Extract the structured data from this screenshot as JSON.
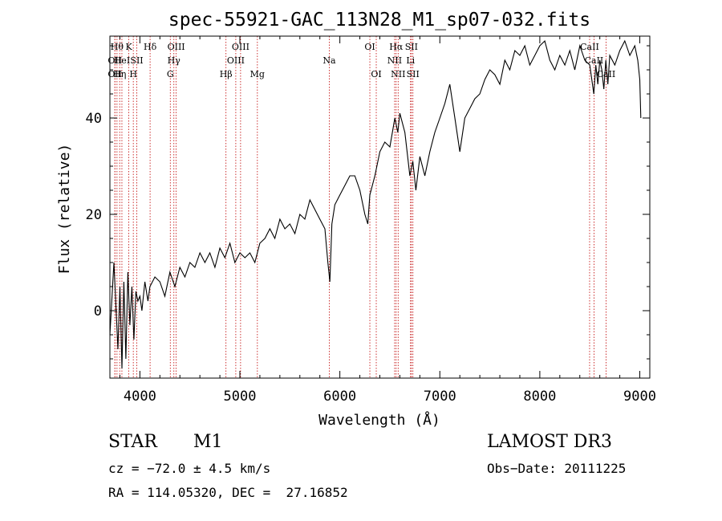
{
  "chart_data": {
    "type": "line",
    "title": "spec-55921-GAC_113N28_M1_sp07-032.fits",
    "xlabel": "Wavelength (Å)",
    "ylabel": "Flux (relative)",
    "xlim": [
      3700,
      9100
    ],
    "ylim": [
      -14,
      57
    ],
    "x_ticks": [
      4000,
      5000,
      6000,
      7000,
      8000,
      9000
    ],
    "y_ticks": [
      0,
      20,
      40
    ],
    "series": [
      {
        "name": "flux",
        "x": [
          3700,
          3740,
          3780,
          3800,
          3820,
          3840,
          3860,
          3880,
          3900,
          3920,
          3940,
          3960,
          3980,
          4000,
          4020,
          4050,
          4080,
          4100,
          4150,
          4200,
          4250,
          4300,
          4350,
          4400,
          4450,
          4500,
          4550,
          4600,
          4650,
          4700,
          4750,
          4800,
          4850,
          4900,
          4950,
          5000,
          5050,
          5100,
          5150,
          5200,
          5250,
          5300,
          5350,
          5400,
          5450,
          5500,
          5550,
          5600,
          5650,
          5700,
          5750,
          5800,
          5850,
          5880,
          5900,
          5920,
          5950,
          6000,
          6050,
          6100,
          6150,
          6200,
          6250,
          6280,
          6300,
          6350,
          6400,
          6450,
          6500,
          6550,
          6580,
          6600,
          6650,
          6700,
          6730,
          6760,
          6800,
          6850,
          6900,
          6950,
          7000,
          7050,
          7100,
          7150,
          7200,
          7250,
          7300,
          7350,
          7400,
          7450,
          7500,
          7550,
          7600,
          7650,
          7700,
          7750,
          7800,
          7850,
          7900,
          7950,
          8000,
          8050,
          8100,
          8150,
          8200,
          8250,
          8300,
          8350,
          8400,
          8450,
          8500,
          8520,
          8540,
          8560,
          8580,
          8600,
          8620,
          8640,
          8660,
          8680,
          8700,
          8750,
          8800,
          8850,
          8900,
          8950,
          8980,
          9000,
          9010
        ],
        "y": [
          -5,
          10,
          -8,
          5,
          -12,
          6,
          -10,
          8,
          -3,
          5,
          -6,
          4,
          2,
          3,
          0,
          6,
          2,
          5,
          7,
          6,
          3,
          8,
          5,
          9,
          7,
          10,
          9,
          12,
          10,
          12,
          9,
          13,
          11,
          14,
          10,
          12,
          11,
          12,
          10,
          14,
          15,
          17,
          15,
          19,
          17,
          18,
          16,
          20,
          19,
          23,
          21,
          19,
          17,
          10,
          6,
          18,
          22,
          24,
          26,
          28,
          28,
          25,
          20,
          18,
          24,
          28,
          33,
          35,
          34,
          40,
          37,
          41,
          37,
          28,
          31,
          25,
          32,
          28,
          33,
          37,
          40,
          43,
          47,
          40,
          33,
          40,
          42,
          44,
          45,
          48,
          50,
          49,
          47,
          52,
          50,
          54,
          53,
          55,
          51,
          53,
          55,
          56,
          52,
          50,
          53,
          51,
          54,
          50,
          55,
          52,
          51,
          48,
          45,
          51,
          47,
          52,
          50,
          46,
          52,
          47,
          53,
          51,
          54,
          56,
          53,
          55,
          52,
          48,
          40
        ]
      }
    ],
    "lines": [
      {
        "x": 3750,
        "label": "OII",
        "row": 1
      },
      {
        "x": 3750,
        "label": "OII",
        "row": 2
      },
      {
        "x": 3771,
        "label": "Hθ",
        "row": 0
      },
      {
        "x": 3798,
        "label": "Hη",
        "row": 2
      },
      {
        "x": 3820,
        "label": "HeI",
        "row": 1
      },
      {
        "x": 3889,
        "label": "K",
        "row": 0
      },
      {
        "x": 3934,
        "label": "H",
        "row": 2
      },
      {
        "x": 3969,
        "label": "SII",
        "row": 1
      },
      {
        "x": 4102,
        "label": "Hδ",
        "row": 0
      },
      {
        "x": 4304,
        "label": "G",
        "row": 2
      },
      {
        "x": 4340,
        "label": "Hγ",
        "row": 1
      },
      {
        "x": 4363,
        "label": "OIII",
        "row": 0
      },
      {
        "x": 4861,
        "label": "Hβ",
        "row": 2
      },
      {
        "x": 4959,
        "label": "OIII",
        "row": 1
      },
      {
        "x": 5007,
        "label": "OIII",
        "row": 0
      },
      {
        "x": 5175,
        "label": "Mg",
        "row": 2
      },
      {
        "x": 5894,
        "label": "Na",
        "row": 1
      },
      {
        "x": 6300,
        "label": "OI",
        "row": 0
      },
      {
        "x": 6364,
        "label": "OI",
        "row": 2
      },
      {
        "x": 6548,
        "label": "NII",
        "row": 1
      },
      {
        "x": 6563,
        "label": "Hα",
        "row": 0
      },
      {
        "x": 6583,
        "label": "NII",
        "row": 2
      },
      {
        "x": 6707,
        "label": "Li",
        "row": 1
      },
      {
        "x": 6716,
        "label": "SII",
        "row": 0
      },
      {
        "x": 6731,
        "label": "SII",
        "row": 2
      },
      {
        "x": 8498,
        "label": "CaII",
        "row": 0
      },
      {
        "x": 8542,
        "label": "CaII",
        "row": 1
      },
      {
        "x": 8662,
        "label": "CaII",
        "row": 2
      }
    ]
  },
  "info": {
    "class": "STAR",
    "subclass": "M1",
    "survey": "LAMOST DR3",
    "cz": "cz = −72.0 ± 4.5 km/s",
    "obs_date": "Obs−Date: 20111225",
    "coords": "RA = 114.05320, DEC =  27.16852"
  }
}
